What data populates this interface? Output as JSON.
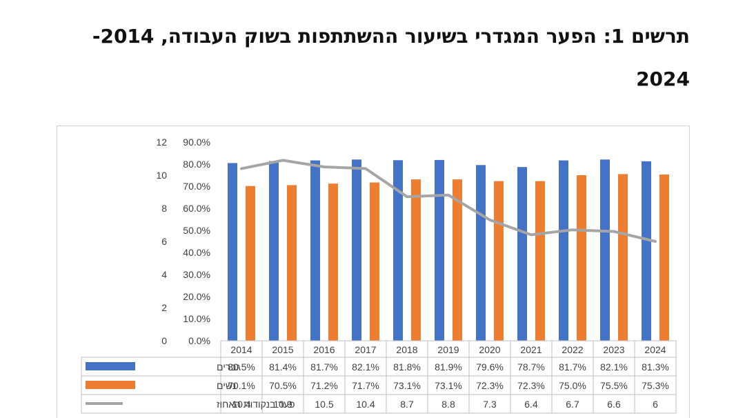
{
  "title": {
    "line1": "תרשים 1: הפער המגדרי בשיעור ההשתתפות בשוק העבודה, 2014-",
    "line2": "2024"
  },
  "colors": {
    "men": "#4472C4",
    "women": "#ED7D31",
    "gap": "#A5A5A5"
  },
  "chart_data": {
    "type": "bar",
    "categories": [
      "2014",
      "2015",
      "2016",
      "2017",
      "2018",
      "2019",
      "2020",
      "2021",
      "2022",
      "2023",
      "2024"
    ],
    "series": [
      {
        "name": "גברים",
        "kind": "bar",
        "axis": "left",
        "values": [
          80.5,
          81.4,
          81.7,
          82.1,
          81.8,
          81.9,
          79.6,
          78.7,
          81.7,
          82.1,
          81.3
        ],
        "labels": [
          "80.5%",
          "81.4%",
          "81.7%",
          "82.1%",
          "81.8%",
          "81.9%",
          "79.6%",
          "78.7%",
          "81.7%",
          "82.1%",
          "81.3%"
        ]
      },
      {
        "name": "נשים",
        "kind": "bar",
        "axis": "left",
        "values": [
          70.1,
          70.5,
          71.2,
          71.7,
          73.1,
          73.1,
          72.3,
          72.3,
          75.0,
          75.5,
          75.3
        ],
        "labels": [
          "70.1%",
          "70.5%",
          "71.2%",
          "71.7%",
          "73.1%",
          "73.1%",
          "72.3%",
          "72.3%",
          "75.0%",
          "75.5%",
          "75.3%"
        ]
      },
      {
        "name": "פער בנקודות האחוז",
        "kind": "line",
        "axis": "right",
        "values": [
          10.4,
          10.9,
          10.5,
          10.4,
          8.7,
          8.8,
          7.3,
          6.4,
          6.7,
          6.6,
          6
        ],
        "labels": [
          "10.4",
          "10.9",
          "10.5",
          "10.4",
          "8.7",
          "8.8",
          "7.3",
          "6.4",
          "6.7",
          "6.6",
          "6"
        ]
      }
    ],
    "left_axis": {
      "ticks": [
        "0.0%",
        "10.0%",
        "20.0%",
        "30.0%",
        "40.0%",
        "50.0%",
        "60.0%",
        "70.0%",
        "80.0%",
        "90.0%"
      ],
      "min": 0,
      "max": 90
    },
    "right_axis": {
      "ticks": [
        "0",
        "2",
        "4",
        "6",
        "8",
        "10",
        "12"
      ],
      "min": 0,
      "max": 12
    },
    "data_table": true,
    "grid": false
  }
}
